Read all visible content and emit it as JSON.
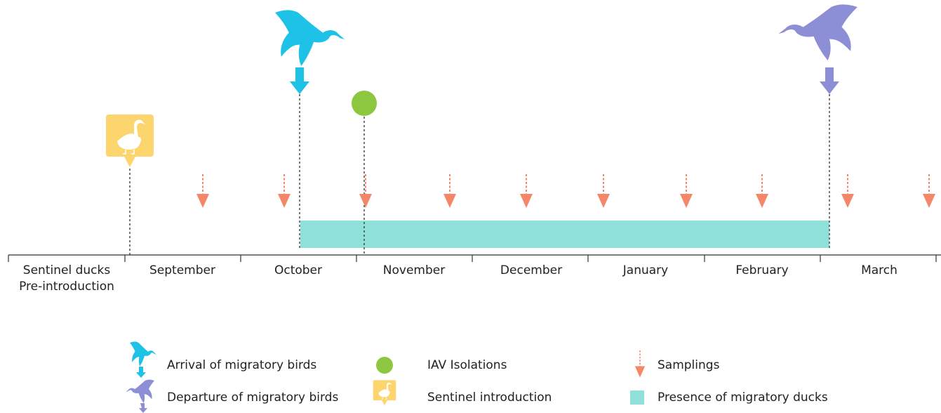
{
  "timeline": {
    "periods": [
      [
        "Sentinel ducks",
        "Pre-introduction"
      ],
      [
        "September"
      ],
      [
        "October"
      ],
      [
        "November"
      ],
      [
        "December"
      ],
      [
        "January"
      ],
      [
        "February"
      ],
      [
        "March"
      ]
    ]
  },
  "legend": [
    "Arrival of migratory birds",
    "Departure of migratory birds",
    "IAV Isolations",
    "Sentinel introduction",
    "Samplings",
    "Presence of migratory ducks"
  ]
}
